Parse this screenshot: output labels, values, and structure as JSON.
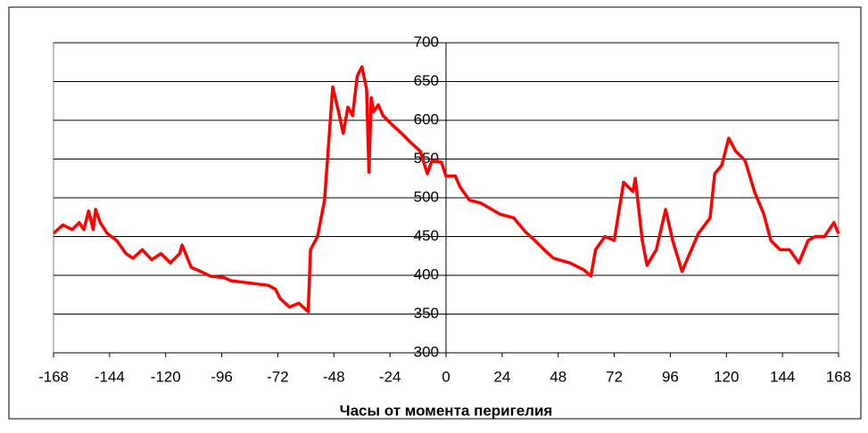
{
  "chart_data": {
    "type": "line",
    "x_label": "Часы от момента перигелия",
    "series": [
      {
        "name": null,
        "color": "#ff0000",
        "x": [
          -168,
          -164,
          -160,
          -157,
          -155,
          -153,
          -151,
          -150,
          -148,
          -145,
          -141,
          -137,
          -134,
          -130,
          -126,
          -122,
          -118,
          -114,
          -113,
          -109,
          -105,
          -101,
          -95,
          -92,
          -84,
          -76,
          -73,
          -71,
          -67,
          -63,
          -59,
          -58,
          -55,
          -52,
          -48.5,
          -46,
          -44,
          -42,
          -40,
          -38,
          -36,
          -34,
          -33,
          -32,
          -31,
          -29,
          -27,
          -23,
          -19,
          -15,
          -11,
          -8,
          -6,
          -2,
          0,
          4,
          6,
          10,
          15,
          23,
          29,
          34,
          38,
          42,
          46,
          53,
          59,
          62,
          64,
          68,
          72,
          76,
          80,
          81,
          84,
          86,
          90,
          94,
          97,
          101,
          105,
          108,
          113,
          115,
          118,
          121,
          124,
          128,
          132,
          136,
          139,
          143,
          147,
          151,
          155,
          158,
          162,
          166,
          168
        ],
        "values": [
          454,
          465,
          459,
          468,
          459,
          483,
          459,
          485,
          468,
          454,
          445,
          428,
          422,
          433,
          420,
          428,
          416,
          428,
          439,
          410,
          405,
          399,
          397,
          393,
          390,
          387,
          382,
          370,
          359,
          364,
          353,
          433,
          450,
          497,
          643,
          611,
          583,
          617,
          606,
          657,
          669,
          640,
          533,
          629,
          611,
          620,
          606,
          594,
          583,
          571,
          560,
          531,
          548,
          546,
          528,
          528,
          514,
          497,
          493,
          479,
          474,
          456,
          445,
          433,
          422,
          416,
          407,
          399,
          433,
          450,
          445,
          520,
          508,
          525,
          445,
          413,
          433,
          485,
          445,
          405,
          433,
          454,
          474,
          531,
          542,
          577,
          560,
          548,
          508,
          479,
          445,
          433,
          433,
          416,
          445,
          450,
          450,
          468,
          454
        ]
      }
    ],
    "xlim": [
      -168,
      168
    ],
    "xticks": [
      -168,
      -144,
      -120,
      -96,
      -72,
      -48,
      -24,
      0,
      24,
      48,
      72,
      96,
      120,
      144,
      168
    ],
    "ylim": [
      300,
      700
    ],
    "yticks": [
      300,
      350,
      400,
      450,
      500,
      550,
      600,
      650,
      700
    ],
    "grid": true
  }
}
